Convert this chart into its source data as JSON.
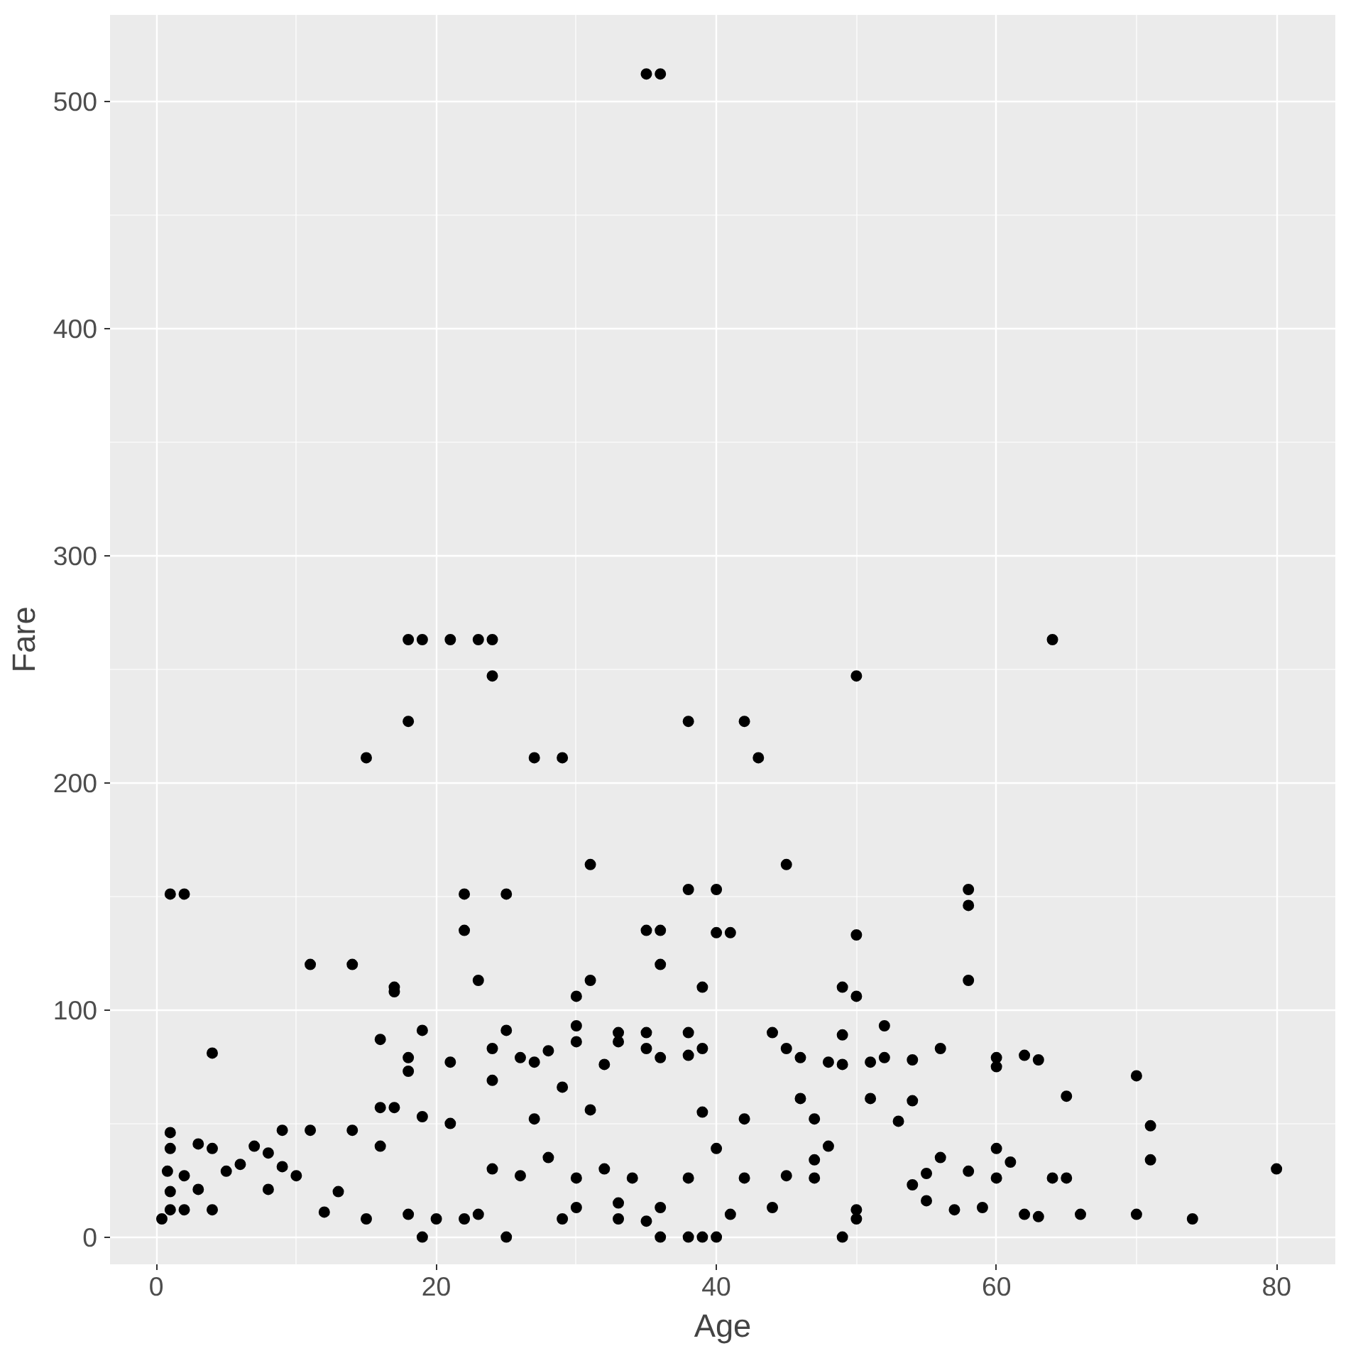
{
  "chart_data": {
    "type": "scatter",
    "xlabel": "Age",
    "ylabel": "Fare",
    "marker": "circle",
    "grid": true,
    "xlim": [
      -3.3,
      84.2
    ],
    "ylim": [
      -12,
      538
    ],
    "xticks": [
      0,
      20,
      40,
      60,
      80
    ],
    "yticks": [
      0,
      100,
      200,
      300,
      400,
      500
    ],
    "series": [
      {
        "color": "#000000",
        "x": [
          35,
          36,
          1,
          2,
          4,
          11,
          14,
          15,
          16,
          17,
          17,
          18,
          18,
          18,
          18,
          19,
          19,
          19,
          21,
          21,
          22,
          22,
          23,
          23,
          24,
          24,
          24,
          24,
          25,
          25,
          26,
          27,
          27,
          28,
          29,
          29,
          30,
          30,
          30,
          31,
          31,
          32,
          33,
          33,
          35,
          35,
          35,
          36,
          36,
          36,
          38,
          38,
          38,
          38,
          39,
          39,
          39,
          40,
          40,
          41,
          42,
          42,
          43,
          44,
          45,
          45,
          46,
          46,
          47,
          48,
          49,
          49,
          49,
          50,
          50,
          50,
          51,
          51,
          52,
          52,
          53,
          54,
          54,
          56,
          58,
          58,
          58,
          60,
          60,
          62,
          63,
          64,
          65,
          65,
          66,
          70,
          70,
          71,
          71,
          74,
          80,
          60,
          61,
          62,
          64,
          59,
          58,
          56,
          55,
          54,
          57,
          48,
          47,
          45,
          44,
          42,
          41,
          40,
          38,
          36,
          34,
          33,
          32,
          31,
          30,
          29,
          28,
          27,
          26,
          25,
          24,
          23,
          22,
          21,
          20,
          19,
          18,
          17,
          16,
          16,
          15,
          14,
          13,
          12,
          11,
          10,
          9,
          9,
          8,
          8,
          7,
          6,
          5,
          4,
          4,
          3,
          3,
          2,
          2,
          1,
          1,
          1,
          1,
          0.4,
          0.8,
          49,
          38,
          39,
          40,
          36,
          50,
          50,
          55,
          60,
          63,
          47,
          35,
          33,
          30
        ],
        "values": [
          512,
          512,
          151,
          151,
          81,
          120,
          120,
          211,
          87,
          110,
          108,
          263,
          227,
          79,
          73,
          263,
          91,
          53,
          263,
          77,
          151,
          135,
          263,
          113,
          263,
          247,
          83,
          69,
          151,
          91,
          79,
          211,
          77,
          82,
          211,
          66,
          106,
          93,
          86,
          164,
          113,
          76,
          90,
          86,
          90,
          83,
          135,
          135,
          120,
          79,
          227,
          153,
          90,
          80,
          110,
          83,
          55,
          153,
          134,
          134,
          227,
          52,
          211,
          90,
          164,
          83,
          79,
          61,
          52,
          77,
          110,
          89,
          76,
          247,
          133,
          106,
          77,
          61,
          93,
          79,
          51,
          78,
          60,
          83,
          153,
          146,
          113,
          79,
          75,
          80,
          78,
          263,
          62,
          26,
          10,
          71,
          10,
          49,
          34,
          8,
          30,
          39,
          33,
          10,
          26,
          13,
          29,
          35,
          16,
          23,
          12,
          40,
          34,
          27,
          13,
          26,
          10,
          39,
          26,
          13,
          26,
          8,
          30,
          56,
          26,
          8,
          35,
          52,
          27,
          0,
          30,
          10,
          8,
          50,
          8,
          0,
          10,
          57,
          57,
          40,
          8,
          47,
          20,
          11,
          47,
          27,
          47,
          31,
          21,
          37,
          40,
          32,
          29,
          39,
          12,
          21,
          41,
          27,
          12,
          46,
          39,
          20,
          12,
          8,
          29,
          0,
          0,
          0,
          0,
          0,
          8,
          12,
          28,
          26,
          9,
          26,
          7,
          15,
          13
        ]
      }
    ]
  }
}
